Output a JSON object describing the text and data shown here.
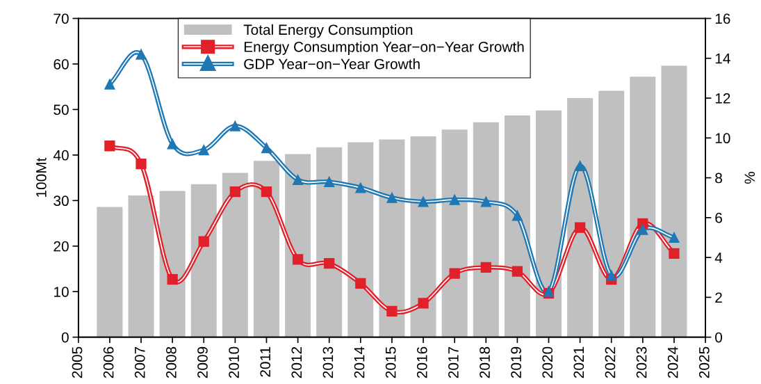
{
  "chart_data": {
    "type": "bar",
    "x": [
      2006,
      2007,
      2008,
      2009,
      2010,
      2011,
      2012,
      2013,
      2014,
      2015,
      2016,
      2017,
      2018,
      2019,
      2020,
      2021,
      2022,
      2023,
      2024
    ],
    "ylabel": "100Mt",
    "y2label": "%",
    "series": [
      {
        "name": "Total Energy Consumption",
        "color": "#c0c0c0",
        "values": [
          28.6,
          31.1,
          32.1,
          33.6,
          36.1,
          38.7,
          40.2,
          41.7,
          42.8,
          43.4,
          44.1,
          45.6,
          47.2,
          48.7,
          49.8,
          52.5,
          54.1,
          57.2,
          59.6
        ]
      },
      {
        "name": "Energy Consumption Year−on−Year Growth",
        "type": "line",
        "axis": "y2",
        "color": "#e0202a",
        "marker": "square",
        "values": [
          9.6,
          8.7,
          2.9,
          4.8,
          7.3,
          7.3,
          3.9,
          3.7,
          2.7,
          1.3,
          1.7,
          3.2,
          3.5,
          3.3,
          2.2,
          5.5,
          2.9,
          5.7,
          4.2
        ]
      },
      {
        "name": "GDP Year−on−Year Growth",
        "type": "line",
        "axis": "y2",
        "color": "#1f77b4",
        "marker": "triangle",
        "values": [
          12.7,
          14.2,
          9.7,
          9.4,
          10.6,
          9.5,
          7.9,
          7.8,
          7.5,
          7.0,
          6.8,
          6.9,
          6.8,
          6.1,
          2.3,
          8.6,
          3.1,
          5.4,
          5.0
        ]
      }
    ],
    "xlim": [
      2005,
      2025
    ],
    "xticks": [
      2005,
      2006,
      2007,
      2008,
      2009,
      2010,
      2011,
      2012,
      2013,
      2014,
      2015,
      2016,
      2017,
      2018,
      2019,
      2020,
      2021,
      2022,
      2023,
      2024,
      2025
    ],
    "ylim": [
      0,
      70
    ],
    "yticks": [
      0,
      10,
      20,
      30,
      40,
      50,
      60,
      70
    ],
    "y2lim": [
      0,
      16
    ],
    "y2ticks": [
      0,
      2,
      4,
      6,
      8,
      10,
      12,
      14,
      16
    ],
    "legend": "top",
    "grid": false
  }
}
